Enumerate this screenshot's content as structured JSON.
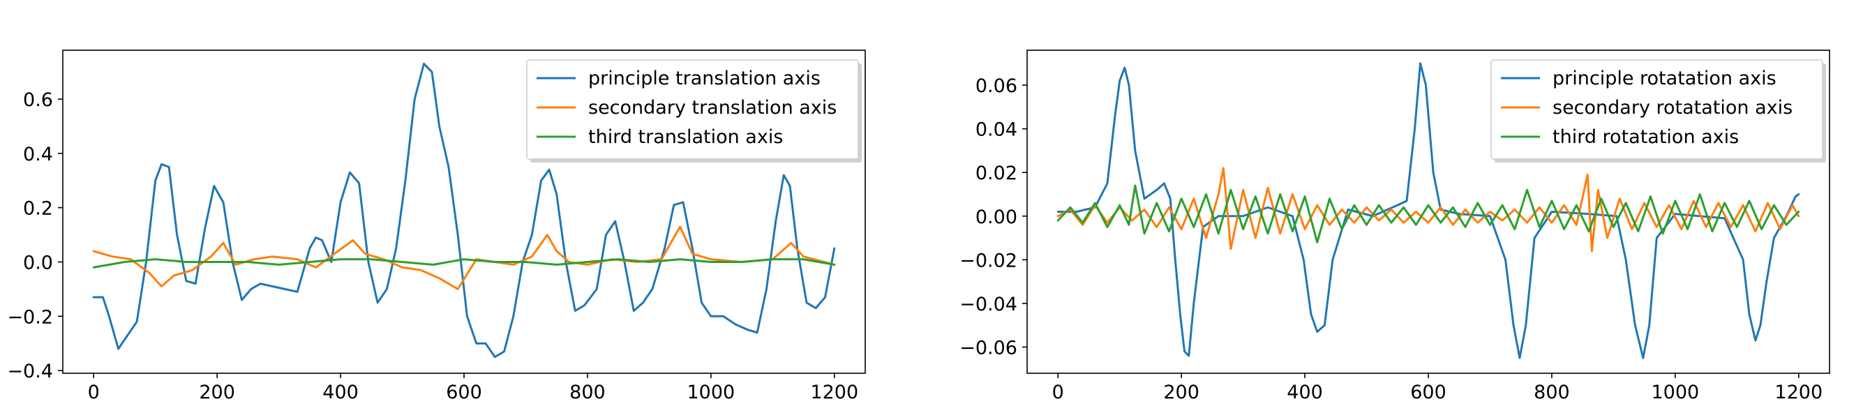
{
  "chart_data": [
    {
      "type": "line",
      "xlim": [
        -50,
        1250
      ],
      "ylim": [
        -0.41,
        0.78
      ],
      "x_ticks": [
        0,
        200,
        400,
        600,
        800,
        1000,
        1200
      ],
      "x_tick_labels": [
        "0",
        "200",
        "400",
        "600",
        "800",
        "1000",
        "1200"
      ],
      "y_ticks": [
        -0.4,
        -0.2,
        0.0,
        0.2,
        0.4,
        0.6
      ],
      "y_tick_labels": [
        "−0.4",
        "−0.2",
        "0.0",
        "0.2",
        "0.4",
        "0.6"
      ],
      "grid": false,
      "legend_position": "top-right",
      "series": [
        {
          "name": "principle translation axis",
          "color": "#1f77b4",
          "x": [
            0,
            15,
            25,
            40,
            55,
            70,
            85,
            100,
            110,
            122,
            135,
            150,
            165,
            180,
            195,
            210,
            225,
            240,
            255,
            270,
            290,
            310,
            330,
            350,
            360,
            370,
            385,
            400,
            415,
            430,
            445,
            460,
            475,
            490,
            505,
            520,
            535,
            548,
            560,
            575,
            590,
            605,
            620,
            635,
            650,
            665,
            680,
            695,
            710,
            725,
            738,
            750,
            765,
            780,
            795,
            815,
            830,
            845,
            860,
            875,
            890,
            905,
            925,
            940,
            955,
            970,
            985,
            1000,
            1020,
            1040,
            1060,
            1075,
            1090,
            1105,
            1118,
            1128,
            1140,
            1155,
            1170,
            1185,
            1200
          ],
          "y": [
            -0.13,
            -0.13,
            -0.2,
            -0.32,
            -0.27,
            -0.22,
            0.0,
            0.3,
            0.36,
            0.35,
            0.1,
            -0.07,
            -0.08,
            0.12,
            0.28,
            0.22,
            0.0,
            -0.14,
            -0.1,
            -0.08,
            -0.09,
            -0.1,
            -0.11,
            0.05,
            0.09,
            0.08,
            0.0,
            0.22,
            0.33,
            0.29,
            0.0,
            -0.15,
            -0.1,
            0.05,
            0.3,
            0.6,
            0.73,
            0.7,
            0.5,
            0.35,
            0.1,
            -0.2,
            -0.3,
            -0.3,
            -0.35,
            -0.33,
            -0.2,
            0.0,
            0.1,
            0.3,
            0.34,
            0.25,
            0.0,
            -0.18,
            -0.16,
            -0.1,
            0.1,
            0.15,
            0.0,
            -0.18,
            -0.15,
            -0.1,
            0.05,
            0.21,
            0.22,
            0.05,
            -0.15,
            -0.2,
            -0.2,
            -0.23,
            -0.25,
            -0.26,
            -0.1,
            0.15,
            0.32,
            0.28,
            0.05,
            -0.15,
            -0.17,
            -0.13,
            0.05
          ]
        },
        {
          "name": "secondary translation axis",
          "color": "#ff7f0e",
          "x": [
            0,
            30,
            60,
            90,
            110,
            130,
            160,
            190,
            210,
            230,
            260,
            290,
            330,
            360,
            390,
            420,
            440,
            470,
            500,
            530,
            560,
            590,
            620,
            650,
            680,
            710,
            735,
            750,
            770,
            800,
            840,
            880,
            920,
            950,
            970,
            1000,
            1050,
            1100,
            1130,
            1150,
            1200
          ],
          "y": [
            0.04,
            0.02,
            0.01,
            -0.04,
            -0.09,
            -0.05,
            -0.03,
            0.02,
            0.07,
            -0.01,
            0.01,
            0.02,
            0.01,
            -0.02,
            0.03,
            0.08,
            0.03,
            0.01,
            -0.02,
            -0.03,
            -0.06,
            -0.1,
            0.01,
            0.0,
            -0.01,
            0.02,
            0.1,
            0.04,
            0.0,
            -0.01,
            0.01,
            0.0,
            0.01,
            0.13,
            0.03,
            0.01,
            0.0,
            0.01,
            0.07,
            0.02,
            -0.01
          ]
        },
        {
          "name": "third translation axis",
          "color": "#2ca02c",
          "x": [
            0,
            50,
            100,
            150,
            200,
            250,
            300,
            350,
            400,
            450,
            500,
            550,
            600,
            650,
            700,
            750,
            800,
            850,
            900,
            950,
            1000,
            1050,
            1100,
            1150,
            1200
          ],
          "y": [
            -0.02,
            0.0,
            0.01,
            0.0,
            0.0,
            0.0,
            -0.01,
            0.0,
            0.01,
            0.01,
            0.0,
            -0.01,
            0.01,
            0.0,
            0.0,
            -0.01,
            0.0,
            0.01,
            0.0,
            0.01,
            0.0,
            0.0,
            0.01,
            0.01,
            -0.01
          ]
        }
      ]
    },
    {
      "type": "line",
      "xlim": [
        -50,
        1250
      ],
      "ylim": [
        -0.072,
        0.076
      ],
      "x_ticks": [
        0,
        200,
        400,
        600,
        800,
        1000,
        1200
      ],
      "x_tick_labels": [
        "0",
        "200",
        "400",
        "600",
        "800",
        "1000",
        "1200"
      ],
      "y_ticks": [
        -0.06,
        -0.04,
        -0.02,
        0.0,
        0.02,
        0.04,
        0.06
      ],
      "y_tick_labels": [
        "−0.06",
        "−0.04",
        "−0.02",
        "0.00",
        "0.02",
        "0.04",
        "0.06"
      ],
      "grid": false,
      "legend_position": "top-right",
      "series": [
        {
          "name": "principle rotatation axis",
          "color": "#1f77b4",
          "x": [
            0,
            30,
            60,
            80,
            92,
            100,
            108,
            115,
            125,
            140,
            160,
            172,
            182,
            190,
            198,
            205,
            212,
            220,
            235,
            260,
            300,
            340,
            380,
            398,
            410,
            420,
            432,
            445,
            470,
            510,
            550,
            565,
            578,
            587,
            596,
            608,
            620,
            650,
            700,
            725,
            738,
            748,
            758,
            772,
            800,
            860,
            905,
            920,
            935,
            948,
            958,
            970,
            1000,
            1080,
            1110,
            1120,
            1130,
            1138,
            1148,
            1160,
            1180,
            1195,
            1200
          ],
          "y": [
            0.002,
            0.002,
            0.004,
            0.015,
            0.045,
            0.062,
            0.068,
            0.06,
            0.03,
            0.008,
            0.012,
            0.015,
            0.008,
            -0.02,
            -0.045,
            -0.062,
            -0.064,
            -0.04,
            -0.005,
            0.0,
            0.0,
            0.004,
            0.0,
            -0.02,
            -0.045,
            -0.053,
            -0.05,
            -0.02,
            0.003,
            0.0,
            0.005,
            0.007,
            0.04,
            0.07,
            0.06,
            0.02,
            0.003,
            0.001,
            0.0,
            -0.02,
            -0.05,
            -0.065,
            -0.05,
            -0.01,
            0.002,
            0.001,
            0.0,
            -0.02,
            -0.05,
            -0.065,
            -0.05,
            -0.01,
            0.001,
            -0.001,
            -0.02,
            -0.045,
            -0.057,
            -0.05,
            -0.03,
            -0.01,
            0.0,
            0.009,
            0.01
          ]
        },
        {
          "name": "secondary rotatation axis",
          "color": "#ff7f0e",
          "x": [
            0,
            20,
            40,
            60,
            80,
            100,
            120,
            140,
            160,
            180,
            200,
            220,
            240,
            260,
            268,
            280,
            300,
            320,
            340,
            360,
            380,
            400,
            420,
            440,
            460,
            480,
            500,
            520,
            540,
            560,
            580,
            600,
            620,
            640,
            660,
            680,
            700,
            720,
            740,
            760,
            780,
            800,
            820,
            840,
            858,
            865,
            875,
            890,
            910,
            930,
            950,
            970,
            990,
            1010,
            1030,
            1050,
            1070,
            1090,
            1110,
            1130,
            1150,
            1170,
            1190,
            1200
          ],
          "y": [
            0.0,
            0.003,
            -0.004,
            0.005,
            -0.003,
            0.004,
            -0.002,
            0.003,
            -0.005,
            0.004,
            -0.006,
            0.008,
            -0.01,
            0.01,
            0.022,
            -0.015,
            0.012,
            -0.01,
            0.013,
            -0.008,
            0.01,
            -0.006,
            0.005,
            -0.004,
            0.003,
            -0.003,
            0.004,
            -0.002,
            0.003,
            -0.003,
            0.002,
            -0.003,
            0.004,
            -0.004,
            0.003,
            -0.003,
            0.002,
            -0.002,
            0.003,
            -0.003,
            0.004,
            -0.003,
            0.005,
            -0.004,
            0.019,
            -0.016,
            0.012,
            -0.01,
            0.008,
            -0.006,
            0.006,
            -0.005,
            0.005,
            -0.006,
            0.007,
            -0.005,
            0.006,
            -0.005,
            0.005,
            -0.007,
            0.006,
            -0.006,
            0.005,
            0.0
          ]
        },
        {
          "name": "third rotatation axis",
          "color": "#2ca02c",
          "x": [
            0,
            20,
            40,
            60,
            80,
            100,
            115,
            125,
            140,
            160,
            180,
            200,
            220,
            240,
            260,
            280,
            300,
            320,
            340,
            360,
            380,
            400,
            420,
            440,
            460,
            480,
            500,
            520,
            540,
            560,
            580,
            600,
            620,
            640,
            660,
            680,
            700,
            720,
            740,
            760,
            780,
            800,
            820,
            840,
            860,
            880,
            900,
            920,
            940,
            960,
            980,
            1000,
            1020,
            1040,
            1060,
            1080,
            1100,
            1120,
            1140,
            1160,
            1180,
            1200
          ],
          "y": [
            -0.002,
            0.004,
            -0.003,
            0.006,
            -0.005,
            0.005,
            -0.004,
            0.014,
            -0.008,
            0.006,
            -0.007,
            0.008,
            -0.005,
            0.01,
            -0.008,
            0.012,
            -0.006,
            0.009,
            -0.008,
            0.01,
            -0.007,
            0.009,
            -0.012,
            0.008,
            -0.006,
            0.005,
            -0.004,
            0.005,
            -0.003,
            0.004,
            -0.004,
            0.005,
            -0.003,
            0.004,
            -0.005,
            0.006,
            -0.004,
            0.005,
            -0.006,
            0.012,
            -0.005,
            0.007,
            -0.006,
            0.005,
            -0.007,
            0.008,
            -0.005,
            0.006,
            -0.007,
            0.009,
            -0.008,
            0.007,
            -0.006,
            0.01,
            -0.007,
            0.006,
            -0.005,
            0.007,
            -0.006,
            0.005,
            -0.004,
            0.002
          ]
        }
      ]
    }
  ]
}
